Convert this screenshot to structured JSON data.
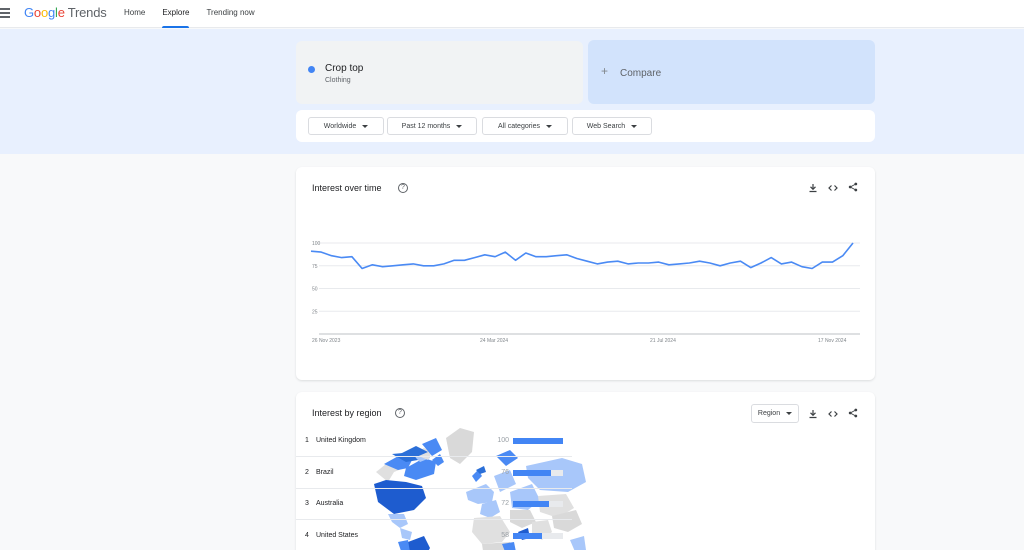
{
  "header": {
    "logo_parts": [
      "G",
      "o",
      "o",
      "g",
      "l",
      "e"
    ],
    "logo_suffix": "Trends",
    "nav": [
      "Home",
      "Explore",
      "Trending now"
    ]
  },
  "search": {
    "term": "Crop top",
    "category": "Clothing",
    "compare_label": "Compare"
  },
  "filters": [
    "Worldwide",
    "Past 12 months",
    "All categories",
    "Web Search"
  ],
  "interest_over_time": {
    "title": "Interest over time",
    "help": "?"
  },
  "chart_data": {
    "type": "line",
    "title": "",
    "xlabel": "",
    "ylabel": "",
    "ylim": [
      0,
      100
    ],
    "yticks": [
      "100",
      "75",
      "50",
      "25"
    ],
    "xtick_labels": [
      "26 Nov 2023",
      "24 Mar 2024",
      "21 Jul 2024",
      "17 Nov 2024"
    ],
    "series": [
      {
        "color": "#4a8af4",
        "values": [
          91,
          90,
          86,
          84,
          85,
          72,
          76,
          74,
          75,
          76,
          77,
          75,
          75,
          77,
          81,
          81,
          84,
          87,
          85,
          90,
          81,
          89,
          85,
          85,
          86,
          87,
          83,
          80,
          77,
          79,
          80,
          77,
          78,
          78,
          79,
          76,
          77,
          78,
          80,
          78,
          75,
          78,
          80,
          73,
          78,
          84,
          77,
          79,
          74,
          72,
          79,
          79,
          86,
          100
        ]
      }
    ]
  },
  "interest_by_region": {
    "title": "Interest by region",
    "help": "?",
    "resolution": "Region",
    "rows": [
      {
        "rank": "1",
        "name": "United Kingdom",
        "value": "100",
        "fraction": 1.0
      },
      {
        "rank": "2",
        "name": "Brazil",
        "value": "76",
        "fraction": 0.76
      },
      {
        "rank": "3",
        "name": "Australia",
        "value": "72",
        "fraction": 0.72
      },
      {
        "rank": "4",
        "name": "United States",
        "value": "58",
        "fraction": 0.58
      }
    ]
  },
  "colors": {
    "accent": "#1a73e8",
    "series": "#4a8af4",
    "band": "#e8f0fe",
    "compare": "#d2e3fc"
  }
}
